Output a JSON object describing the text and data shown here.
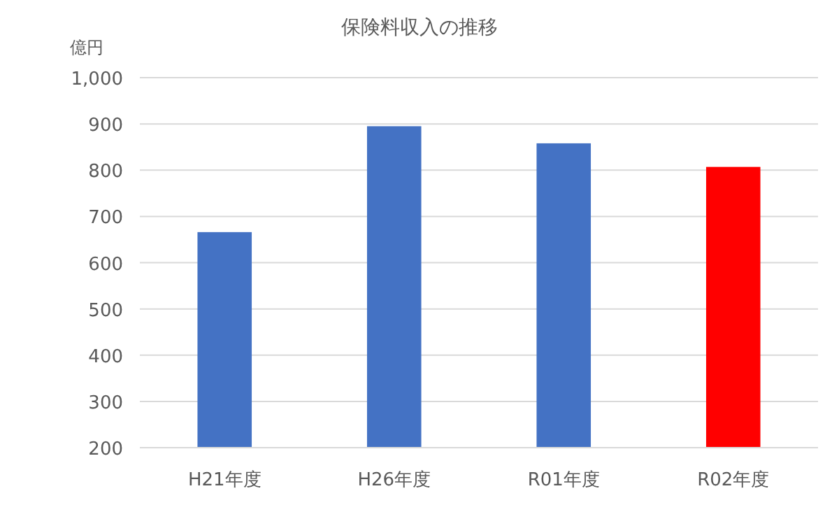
{
  "chart_data": {
    "type": "bar",
    "title": "保険料収入の推移",
    "ylabel": "億円",
    "categories": [
      "H21年度",
      "H26年度",
      "R01年度",
      "R02年度"
    ],
    "values": [
      666,
      895,
      858,
      807
    ],
    "colors": [
      "#4472c4",
      "#4472c4",
      "#4472c4",
      "#ff0000"
    ],
    "ylim": [
      200,
      1000
    ],
    "yticks": [
      {
        "value": 200,
        "label": "200"
      },
      {
        "value": 300,
        "label": "300"
      },
      {
        "value": 400,
        "label": "400"
      },
      {
        "value": 500,
        "label": "500"
      },
      {
        "value": 600,
        "label": "600"
      },
      {
        "value": 700,
        "label": "700"
      },
      {
        "value": 800,
        "label": "800"
      },
      {
        "value": 900,
        "label": "900"
      },
      {
        "value": 1000,
        "label": "1,000"
      }
    ],
    "grid": "y"
  }
}
